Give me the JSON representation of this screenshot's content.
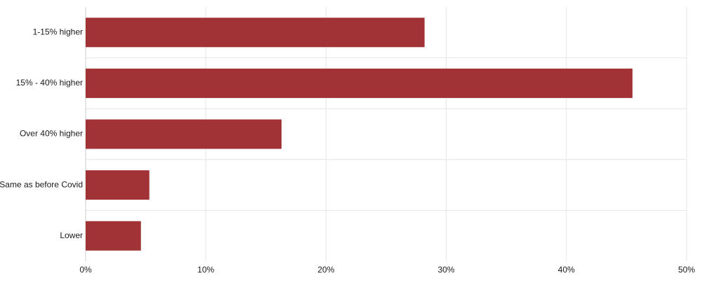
{
  "chart_data": {
    "type": "bar",
    "orientation": "horizontal",
    "categories": [
      "1-15% higher",
      "15% - 40% higher",
      "Over 40% higher",
      "Same as before Covid",
      "Lower"
    ],
    "values": [
      28.2,
      45.5,
      16.3,
      5.3,
      4.6
    ],
    "value_unit": "%",
    "xlim": [
      0,
      50
    ],
    "x_ticks": [
      "0%",
      "10%",
      "20%",
      "30%",
      "40%",
      "50%"
    ],
    "title": "",
    "xlabel": "",
    "ylabel": "",
    "grid": true,
    "bar_color": "#a13336",
    "grid_color": "#e6e6e6"
  }
}
